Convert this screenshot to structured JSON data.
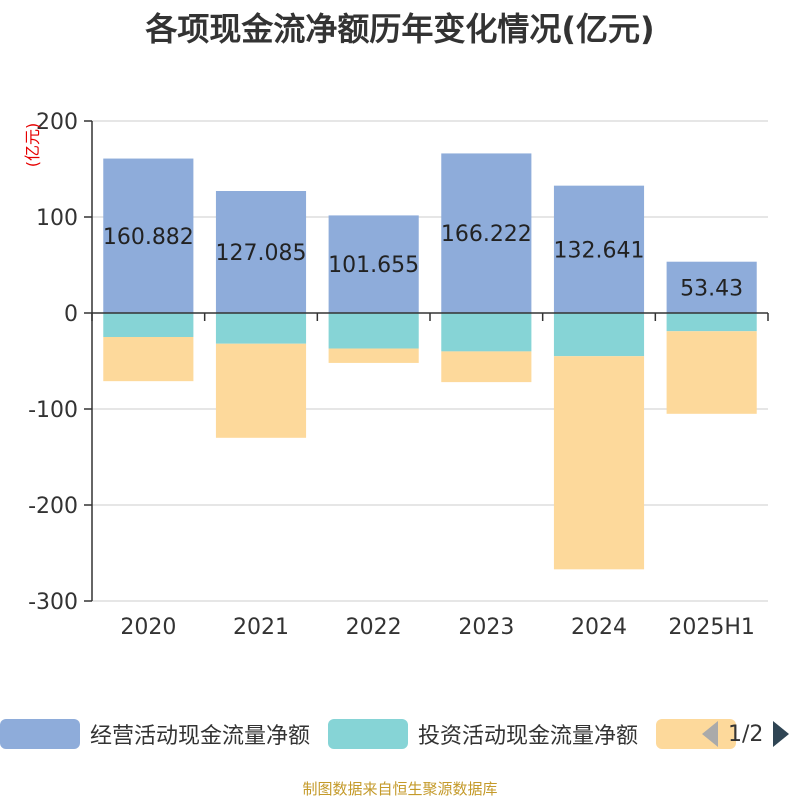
{
  "title": "各项现金流净额历年变化情况(亿元)",
  "footer": "制图数据来自恒生聚源数据库",
  "pager": {
    "text": "1/2",
    "prev_icon": "triangle-left",
    "next_icon": "triangle-right"
  },
  "legend": [
    {
      "name": "经营活动现金流量净额",
      "color": "#8eacda"
    },
    {
      "name": "投资活动现金流量净额",
      "color": "#86d4d6"
    },
    {
      "name": "",
      "color": "#fdd99b"
    }
  ],
  "chart_data": {
    "type": "bar",
    "stacked": true,
    "ylabel": "(亿元)",
    "ylabel_color": "#e60000",
    "ylim": [
      -300,
      200
    ],
    "yticks": [
      200,
      100,
      0,
      -100,
      -200,
      -300
    ],
    "grid": true,
    "categories": [
      "2020",
      "2021",
      "2022",
      "2023",
      "2024",
      "2025H1"
    ],
    "series": [
      {
        "name": "经营活动现金流量净额",
        "color": "#8eacda",
        "values": [
          160.882,
          127.085,
          101.655,
          166.222,
          132.641,
          53.43
        ],
        "labels": [
          "160.882",
          "127.085",
          "101.655",
          "166.222",
          "132.641",
          "53.43"
        ]
      },
      {
        "name": "投资活动现金流量净额",
        "color": "#86d4d6",
        "values": [
          -25,
          -32,
          -37,
          -40,
          -45,
          -19
        ]
      },
      {
        "color": "#fdd99b",
        "values": [
          -46,
          -98,
          -15,
          -32,
          -222,
          -86
        ]
      }
    ]
  }
}
